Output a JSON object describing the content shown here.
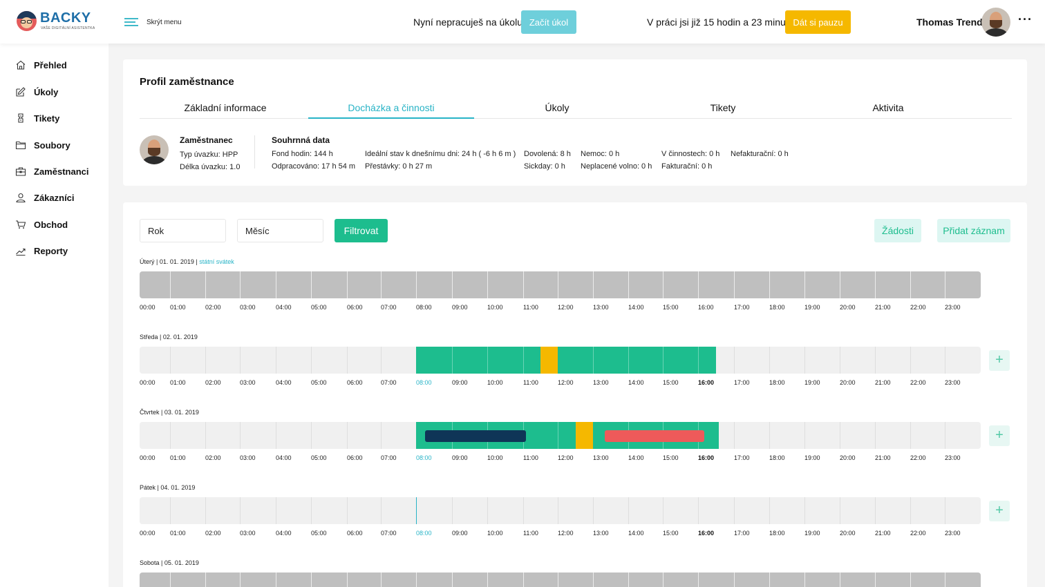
{
  "header": {
    "logo_text": "BACKY",
    "logo_subtitle": "VAŠE DIGITÁLNÍ ASISTENTKA",
    "menu_toggle_label": "Skrýt menu",
    "task_status": "Nyní nepracuješ na úkolu.",
    "start_task_label": "Začít úkol",
    "work_status": "V práci jsi již 15 hodin a 23 minut.",
    "pause_label": "Dát si pauzu",
    "user_name": "Thomas Trend",
    "more_label": "···",
    "colors": {
      "accent": "#27b3c6",
      "start_button": "#6ecfdb",
      "pause_button": "#f5b800"
    }
  },
  "sidebar": {
    "items": [
      {
        "label": "Přehled",
        "icon": "home-icon"
      },
      {
        "label": "Úkoly",
        "icon": "edit-icon"
      },
      {
        "label": "Tikety",
        "icon": "ticket-icon"
      },
      {
        "label": "Soubory",
        "icon": "folder-icon"
      },
      {
        "label": "Zaměstnanci",
        "icon": "briefcase-icon"
      },
      {
        "label": "Zákazníci",
        "icon": "user-icon"
      },
      {
        "label": "Obchod",
        "icon": "cart-icon"
      },
      {
        "label": "Reporty",
        "icon": "chart-line-icon"
      }
    ]
  },
  "profile": {
    "title": "Profil zaměstnance",
    "tabs": [
      {
        "label": "Základní informace",
        "active": false
      },
      {
        "label": "Docházka a činnosti",
        "active": true
      },
      {
        "label": "Úkoly",
        "active": false
      },
      {
        "label": "Tikety",
        "active": false
      },
      {
        "label": "Aktivita",
        "active": false
      }
    ],
    "employee": {
      "title": "Zaměstnanec",
      "contract_type": "Typ úvazku: HPP",
      "contract_length": "Délka úvazku: 1.0"
    },
    "summary": {
      "title": "Souhrnná data",
      "items": [
        "Fond hodin: 144 h",
        "Odpracováno: 17 h 54 m",
        "Ideální stav k dnešnímu dni: 24 h ( -6 h 6 m )",
        "Přestávky: 0 h 27 m",
        "Dovolená: 8 h",
        "Sickday: 0 h",
        "Nemoc: 0 h",
        "Neplacené volno: 0 h",
        "V činnostech: 0 h",
        "Fakturační: 0 h",
        "Nefakturační: 0 h"
      ]
    }
  },
  "attendance": {
    "year_placeholder": "Rok",
    "month_placeholder": "Měsíc",
    "filter_label": "Filtrovat",
    "requests_label": "Žádosti",
    "add_record_label": "Přidat záznam",
    "add_icon": "+",
    "hours": [
      "00:00",
      "01:00",
      "02:00",
      "03:00",
      "04:00",
      "05:00",
      "06:00",
      "07:00",
      "08:00",
      "09:00",
      "10:00",
      "11:00",
      "12:00",
      "13:00",
      "14:00",
      "15:00",
      "16:00",
      "17:00",
      "18:00",
      "19:00",
      "20:00",
      "21:00",
      "22:00",
      "23:00"
    ],
    "work_start": "08:00",
    "work_end": "16:00",
    "colors": {
      "work": "#1dbd8e",
      "break": "#f5b800",
      "activity": "#0f3557",
      "alert": "#ee5a5a",
      "holiday_track": "#bfbfbf",
      "track": "#f0f0f0"
    },
    "days": [
      {
        "label": "Úterý | 01. 01. 2019",
        "note": "státní svátek",
        "type": "holiday",
        "segments": [],
        "now_marker": null
      },
      {
        "label": "Středa | 02. 01. 2019",
        "note": "",
        "type": "workday",
        "segments": [
          {
            "kind": "work",
            "start": "08:00",
            "end": "11:30"
          },
          {
            "kind": "break",
            "start": "11:30",
            "end": "12:00"
          },
          {
            "kind": "work",
            "start": "12:00",
            "end": "16:30"
          }
        ],
        "now_marker": null
      },
      {
        "label": "Čtvrtek | 03. 01. 2019",
        "note": "",
        "type": "workday",
        "segments": [
          {
            "kind": "work",
            "start": "08:00",
            "end": "12:30"
          },
          {
            "kind": "break",
            "start": "12:30",
            "end": "13:00"
          },
          {
            "kind": "work",
            "start": "13:00",
            "end": "16:35"
          }
        ],
        "inner_segments": [
          {
            "kind": "activity",
            "start": "08:15",
            "end": "11:05"
          },
          {
            "kind": "alert",
            "start": "13:20",
            "end": "16:10"
          }
        ],
        "now_marker": null
      },
      {
        "label": "Pátek | 04. 01. 2019",
        "note": "",
        "type": "workday",
        "segments": [],
        "now_marker": "08:00"
      },
      {
        "label": "Sobota | 05. 01. 2019",
        "note": "",
        "type": "holiday",
        "segments": [],
        "now_marker": null
      }
    ]
  }
}
